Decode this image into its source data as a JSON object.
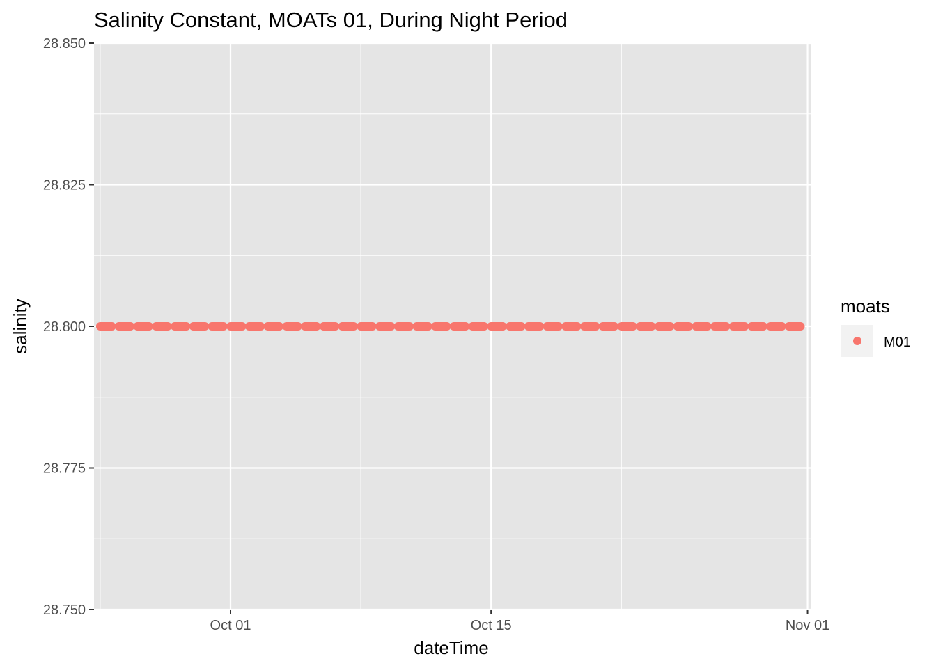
{
  "chart_data": {
    "type": "scatter",
    "title": "Salinity Constant, MOATs 01, During Night Period",
    "xlabel": "dateTime",
    "ylabel": "salinity",
    "x_range": [
      "2019-09-23T16:00",
      "2019-11-01T04:00"
    ],
    "x_ticks": [
      {
        "date": "2019-10-01",
        "label": "Oct 01"
      },
      {
        "date": "2019-10-15",
        "label": "Oct 15"
      },
      {
        "date": "2019-11-01",
        "label": "Nov 01"
      }
    ],
    "x_minor_ticks": [
      "2019-09-24",
      "2019-10-08",
      "2019-10-22"
    ],
    "ylim": [
      28.75,
      28.85
    ],
    "y_ticks": [
      {
        "value": 28.75,
        "label": "28.750"
      },
      {
        "value": 28.775,
        "label": "28.775"
      },
      {
        "value": 28.8,
        "label": "28.800"
      },
      {
        "value": 28.825,
        "label": "28.825"
      },
      {
        "value": 28.85,
        "label": "28.850"
      }
    ],
    "y_minor_ticks": [
      28.7625,
      28.7875,
      28.8125,
      28.8375
    ],
    "grid": true,
    "legend": {
      "title": "moats",
      "position": "right",
      "entries": [
        {
          "label": "M01",
          "color": "#F8766D"
        }
      ]
    },
    "series": [
      {
        "name": "M01",
        "color": "#F8766D",
        "value": 28.8,
        "night_start_dates": [
          "2019-09-24",
          "2019-09-25",
          "2019-09-26",
          "2019-09-27",
          "2019-09-28",
          "2019-09-29",
          "2019-09-30",
          "2019-10-01",
          "2019-10-02",
          "2019-10-03",
          "2019-10-04",
          "2019-10-05",
          "2019-10-06",
          "2019-10-07",
          "2019-10-08",
          "2019-10-09",
          "2019-10-10",
          "2019-10-11",
          "2019-10-12",
          "2019-10-13",
          "2019-10-14",
          "2019-10-15",
          "2019-10-16",
          "2019-10-17",
          "2019-10-18",
          "2019-10-19",
          "2019-10-20",
          "2019-10-21",
          "2019-10-22",
          "2019-10-23",
          "2019-10-24",
          "2019-10-25",
          "2019-10-26",
          "2019-10-27",
          "2019-10-28",
          "2019-10-29",
          "2019-10-30",
          "2019-10-31"
        ],
        "night_start_time": "00:00",
        "night_end_time": "15:00"
      }
    ]
  },
  "colors": {
    "panel_background": "#E5E5E5",
    "grid_major": "#FFFFFF",
    "tick": "#333333",
    "legend_key_background": "#F2F2F2"
  }
}
